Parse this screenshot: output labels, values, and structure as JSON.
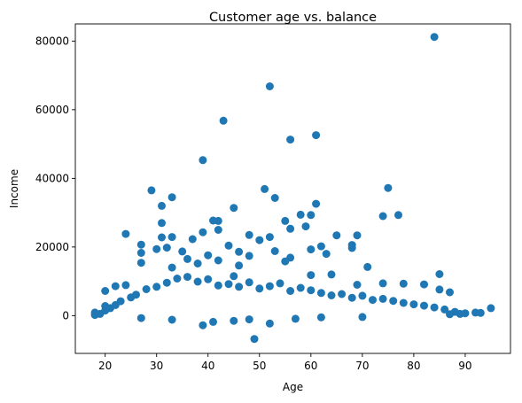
{
  "chart_data": {
    "type": "scatter",
    "title": "Customer age vs. balance",
    "xlabel": "Age",
    "ylabel": "Income",
    "xlim": [
      14.2,
      98.8
    ],
    "ylim": [
      -11000,
      85000
    ],
    "xticks": [
      20,
      30,
      40,
      50,
      60,
      70,
      80,
      90
    ],
    "xtick_labels": [
      "20",
      "30",
      "40",
      "50",
      "60",
      "70",
      "80",
      "90"
    ],
    "yticks": [
      0,
      20000,
      40000,
      60000,
      80000
    ],
    "ytick_labels": [
      "0",
      "20000",
      "40000",
      "60000",
      "80000"
    ],
    "grid": false,
    "marker_color": "#1f77b4",
    "series": [
      {
        "points": [
          [
            84,
            81200
          ],
          [
            52,
            66800
          ],
          [
            43,
            56800
          ],
          [
            61,
            52600
          ],
          [
            56,
            51300
          ],
          [
            39,
            45300
          ],
          [
            75,
            37200
          ],
          [
            29,
            36500
          ],
          [
            51,
            36900
          ],
          [
            33,
            34500
          ],
          [
            53,
            34300
          ],
          [
            61,
            32600
          ],
          [
            31,
            32000
          ],
          [
            45,
            31400
          ],
          [
            58,
            29400
          ],
          [
            74,
            29000
          ],
          [
            77,
            29300
          ],
          [
            60,
            29300
          ],
          [
            41,
            27700
          ],
          [
            42,
            27600
          ],
          [
            55,
            27600
          ],
          [
            59,
            26000
          ],
          [
            31,
            27000
          ],
          [
            56,
            25300
          ],
          [
            42,
            25000
          ],
          [
            39,
            24300
          ],
          [
            24,
            23800
          ],
          [
            65,
            23400
          ],
          [
            69,
            23400
          ],
          [
            48,
            23500
          ],
          [
            52,
            22900
          ],
          [
            33,
            22900
          ],
          [
            37,
            22300
          ],
          [
            50,
            22000
          ],
          [
            31,
            22800
          ],
          [
            27,
            20700
          ],
          [
            44,
            20400
          ],
          [
            68,
            20600
          ],
          [
            62,
            20200
          ],
          [
            32,
            19800
          ],
          [
            30,
            19400
          ],
          [
            60,
            19300
          ],
          [
            68,
            19700
          ],
          [
            53,
            18800
          ],
          [
            35,
            18700
          ],
          [
            46,
            18600
          ],
          [
            27,
            18300
          ],
          [
            63,
            18000
          ],
          [
            40,
            17600
          ],
          [
            48,
            17400
          ],
          [
            56,
            16900
          ],
          [
            36,
            16500
          ],
          [
            42,
            16100
          ],
          [
            55,
            15800
          ],
          [
            27,
            15400
          ],
          [
            38,
            15200
          ],
          [
            71,
            14200
          ],
          [
            46,
            14600
          ],
          [
            33,
            14000
          ],
          [
            85,
            12100
          ],
          [
            64,
            12000
          ],
          [
            60,
            11800
          ],
          [
            45,
            11500
          ],
          [
            74,
            9400
          ],
          [
            78,
            9300
          ],
          [
            82,
            9100
          ],
          [
            69,
            9000
          ],
          [
            85,
            7600
          ],
          [
            87,
            6800
          ],
          [
            20,
            7200
          ],
          [
            22,
            8600
          ],
          [
            24,
            8900
          ],
          [
            18,
            900
          ],
          [
            18,
            200
          ],
          [
            19,
            500
          ],
          [
            20,
            1500
          ],
          [
            20,
            2800
          ],
          [
            21,
            2200
          ],
          [
            22,
            3100
          ],
          [
            23,
            4200
          ],
          [
            25,
            5300
          ],
          [
            26,
            6100
          ],
          [
            28,
            7700
          ],
          [
            30,
            8400
          ],
          [
            32,
            9600
          ],
          [
            34,
            10800
          ],
          [
            36,
            11300
          ],
          [
            38,
            9900
          ],
          [
            40,
            10600
          ],
          [
            42,
            8800
          ],
          [
            44,
            9200
          ],
          [
            46,
            8400
          ],
          [
            48,
            9700
          ],
          [
            50,
            7900
          ],
          [
            52,
            8600
          ],
          [
            54,
            9400
          ],
          [
            56,
            7200
          ],
          [
            58,
            8100
          ],
          [
            60,
            7400
          ],
          [
            62,
            6600
          ],
          [
            64,
            5900
          ],
          [
            66,
            6300
          ],
          [
            68,
            5200
          ],
          [
            70,
            5800
          ],
          [
            72,
            4600
          ],
          [
            74,
            4900
          ],
          [
            76,
            4300
          ],
          [
            78,
            3700
          ],
          [
            80,
            3300
          ],
          [
            82,
            2900
          ],
          [
            84,
            2400
          ],
          [
            86,
            1800
          ],
          [
            88,
            1100
          ],
          [
            90,
            700
          ],
          [
            92,
            900
          ],
          [
            93,
            800
          ],
          [
            95,
            2200
          ],
          [
            89,
            500
          ],
          [
            87,
            400
          ],
          [
            49,
            -6800
          ],
          [
            39,
            -2800
          ],
          [
            45,
            -1500
          ],
          [
            52,
            -2300
          ],
          [
            33,
            -1200
          ],
          [
            57,
            -900
          ],
          [
            27,
            -700
          ],
          [
            62,
            -500
          ],
          [
            70,
            -400
          ],
          [
            41,
            -1800
          ],
          [
            48,
            -1100
          ]
        ]
      }
    ]
  }
}
